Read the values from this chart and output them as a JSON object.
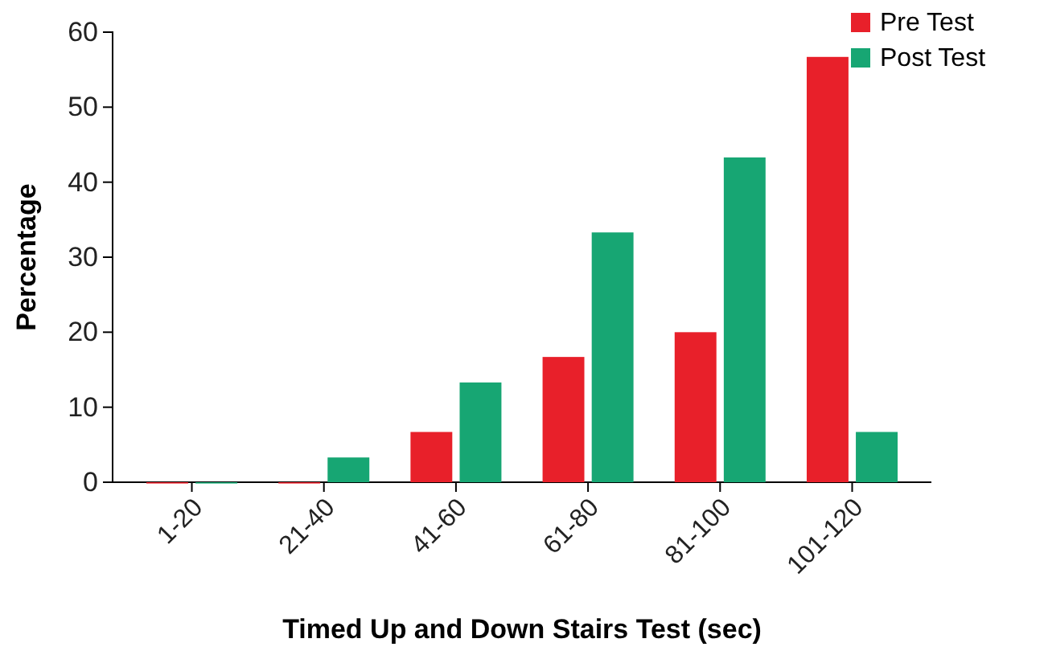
{
  "chart_data": {
    "type": "bar",
    "xlabel": "Timed Up and Down Stairs Test (sec)",
    "ylabel": "Percentage",
    "categories": [
      "1-20",
      "21-40",
      "41-60",
      "61-80",
      "81-100",
      "101-120"
    ],
    "series": [
      {
        "name": "Pre Test",
        "color": "#e8202a",
        "values": [
          0,
          0,
          6.7,
          16.7,
          20,
          56.7
        ]
      },
      {
        "name": "Post Test",
        "color": "#17a673",
        "values": [
          0,
          3.3,
          13.3,
          33.3,
          43.3,
          6.7
        ]
      }
    ],
    "ylim": [
      0,
      60
    ],
    "yticks": [
      0,
      10,
      20,
      30,
      40,
      50,
      60
    ],
    "legend": "top right"
  }
}
